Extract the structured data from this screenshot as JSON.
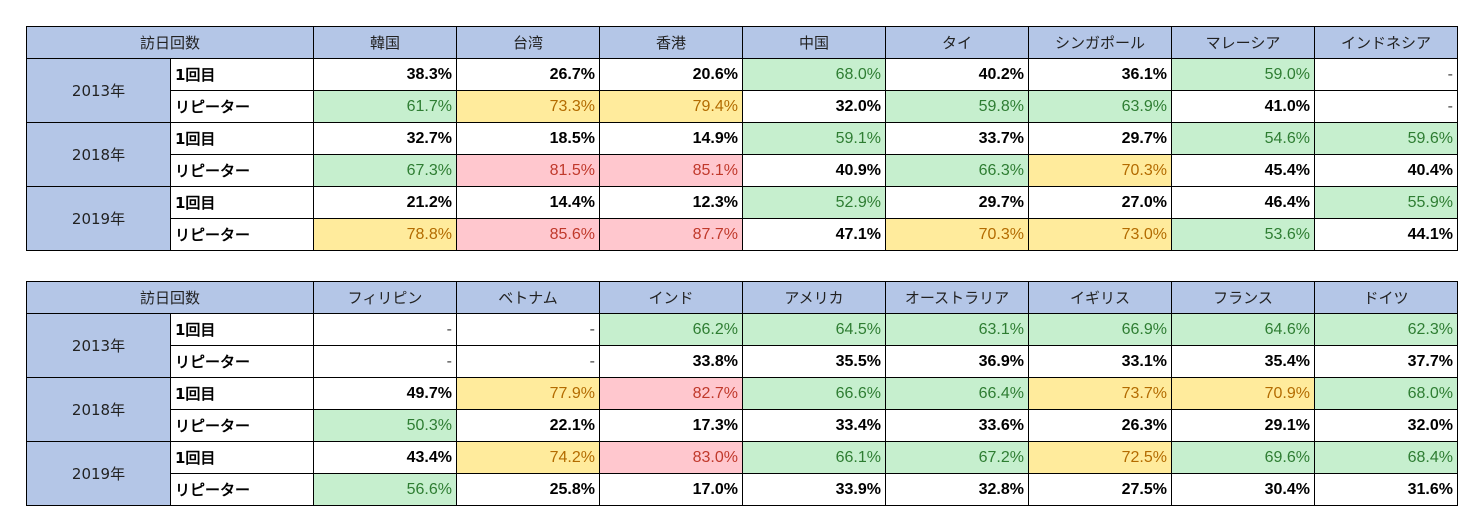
{
  "colors": {
    "header_bg": "#b4c6e7",
    "good_bg": "#c6efce",
    "good_text": "#2e7d32",
    "neutral_bg": "#ffeb9c",
    "neutral_text": "#b36b00",
    "bad_bg": "#ffc7ce",
    "bad_text": "#c0392b"
  },
  "tables": [
    {
      "header_label": "訪日回数",
      "countries": [
        "韓国",
        "台湾",
        "香港",
        "中国",
        "タイ",
        "シンガポール",
        "マレーシア",
        "インドネシア"
      ],
      "years": [
        {
          "year": "2013年",
          "rows": [
            {
              "label": "1回目",
              "values": [
                "38.3%",
                "26.7%",
                "20.6%",
                "68.0%",
                "40.2%",
                "36.1%",
                "59.0%",
                "-"
              ],
              "styles": [
                "",
                "",
                "",
                "g",
                "",
                "",
                "g",
                ""
              ]
            },
            {
              "label": "リピーター",
              "values": [
                "61.7%",
                "73.3%",
                "79.4%",
                "32.0%",
                "59.8%",
                "63.9%",
                "41.0%",
                "-"
              ],
              "styles": [
                "g",
                "y",
                "y",
                "",
                "g",
                "g",
                "",
                ""
              ]
            }
          ]
        },
        {
          "year": "2018年",
          "rows": [
            {
              "label": "1回目",
              "values": [
                "32.7%",
                "18.5%",
                "14.9%",
                "59.1%",
                "33.7%",
                "29.7%",
                "54.6%",
                "59.6%"
              ],
              "styles": [
                "",
                "",
                "",
                "g",
                "",
                "",
                "g",
                "g"
              ]
            },
            {
              "label": "リピーター",
              "values": [
                "67.3%",
                "81.5%",
                "85.1%",
                "40.9%",
                "66.3%",
                "70.3%",
                "45.4%",
                "40.4%"
              ],
              "styles": [
                "g",
                "r",
                "r",
                "",
                "g",
                "y",
                "",
                ""
              ]
            }
          ]
        },
        {
          "year": "2019年",
          "rows": [
            {
              "label": "1回目",
              "values": [
                "21.2%",
                "14.4%",
                "12.3%",
                "52.9%",
                "29.7%",
                "27.0%",
                "46.4%",
                "55.9%"
              ],
              "styles": [
                "",
                "",
                "",
                "g",
                "",
                "",
                "",
                "g"
              ]
            },
            {
              "label": "リピーター",
              "values": [
                "78.8%",
                "85.6%",
                "87.7%",
                "47.1%",
                "70.3%",
                "73.0%",
                "53.6%",
                "44.1%"
              ],
              "styles": [
                "y",
                "r",
                "r",
                "",
                "y",
                "y",
                "g",
                ""
              ]
            }
          ]
        }
      ]
    },
    {
      "header_label": "訪日回数",
      "countries": [
        "フィリピン",
        "ベトナム",
        "インド",
        "アメリカ",
        "オーストラリア",
        "イギリス",
        "フランス",
        "ドイツ"
      ],
      "years": [
        {
          "year": "2013年",
          "rows": [
            {
              "label": "1回目",
              "values": [
                "-",
                "-",
                "66.2%",
                "64.5%",
                "63.1%",
                "66.9%",
                "64.6%",
                "62.3%"
              ],
              "styles": [
                "",
                "",
                "g",
                "g",
                "g",
                "g",
                "g",
                "g"
              ]
            },
            {
              "label": "リピーター",
              "values": [
                "-",
                "-",
                "33.8%",
                "35.5%",
                "36.9%",
                "33.1%",
                "35.4%",
                "37.7%"
              ],
              "styles": [
                "",
                "",
                "",
                "",
                "",
                "",
                "",
                ""
              ]
            }
          ]
        },
        {
          "year": "2018年",
          "rows": [
            {
              "label": "1回目",
              "values": [
                "49.7%",
                "77.9%",
                "82.7%",
                "66.6%",
                "66.4%",
                "73.7%",
                "70.9%",
                "68.0%"
              ],
              "styles": [
                "",
                "y",
                "r",
                "g",
                "g",
                "y",
                "y",
                "g"
              ]
            },
            {
              "label": "リピーター",
              "values": [
                "50.3%",
                "22.1%",
                "17.3%",
                "33.4%",
                "33.6%",
                "26.3%",
                "29.1%",
                "32.0%"
              ],
              "styles": [
                "g",
                "",
                "",
                "",
                "",
                "",
                "",
                ""
              ]
            }
          ]
        },
        {
          "year": "2019年",
          "rows": [
            {
              "label": "1回目",
              "values": [
                "43.4%",
                "74.2%",
                "83.0%",
                "66.1%",
                "67.2%",
                "72.5%",
                "69.6%",
                "68.4%"
              ],
              "styles": [
                "",
                "y",
                "r",
                "g",
                "g",
                "y",
                "g",
                "g"
              ]
            },
            {
              "label": "リピーター",
              "values": [
                "56.6%",
                "25.8%",
                "17.0%",
                "33.9%",
                "32.8%",
                "27.5%",
                "30.4%",
                "31.6%"
              ],
              "styles": [
                "g",
                "",
                "",
                "",
                "",
                "",
                "",
                ""
              ]
            }
          ]
        }
      ]
    }
  ]
}
